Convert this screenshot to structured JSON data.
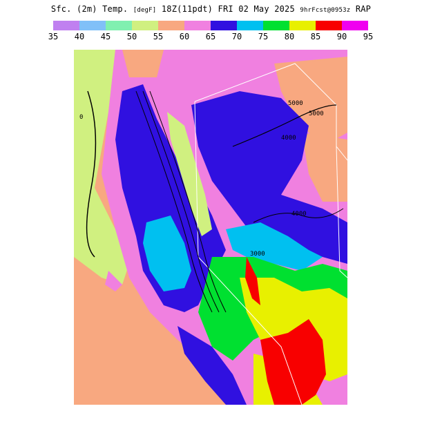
{
  "header": {
    "title_main": "Sfc. (2m) Temp.",
    "title_unit": "[degF]",
    "title_time": "18Z(11pdt) FRI 02 May 2025",
    "title_fcst": "9hrFcst@0953z",
    "title_model": "RAP"
  },
  "scale": {
    "colors": [
      "#c080f0",
      "#80c0f8",
      "#80f0b0",
      "#d0f080",
      "#f8a880",
      "#f080e0",
      "#3010e0",
      "#00c0f0",
      "#00e030",
      "#e8f000",
      "#f80000",
      "#f000f0"
    ],
    "labels": [
      "35",
      "40",
      "45",
      "50",
      "55",
      "60",
      "65",
      "70",
      "75",
      "80",
      "85",
      "90",
      "95"
    ]
  },
  "map": {
    "contour_labels": [
      "5000",
      "5000",
      "4000",
      "4000",
      "3000",
      "0"
    ]
  }
}
